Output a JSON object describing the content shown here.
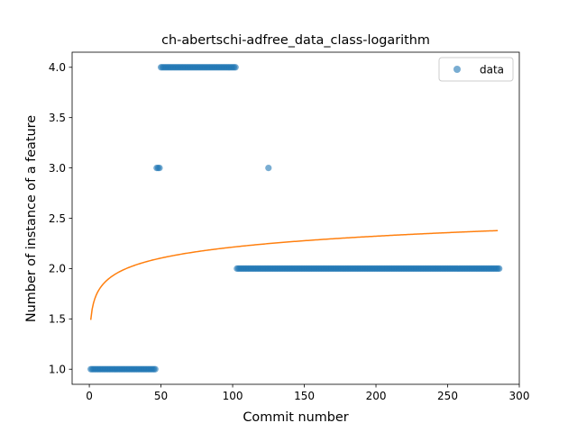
{
  "chart_data": {
    "type": "scatter",
    "title": "ch-abertschi-adfree_data_class-logarithm",
    "xlabel": "Commit number",
    "ylabel": "Number of instance of a feature",
    "xlim": [
      -12,
      300
    ],
    "ylim": [
      0.85,
      4.15
    ],
    "xticks": [
      0,
      50,
      100,
      150,
      200,
      250,
      300
    ],
    "yticks": [
      1.0,
      1.5,
      2.0,
      2.5,
      3.0,
      3.5,
      4.0
    ],
    "xtick_labels": [
      "0",
      "50",
      "100",
      "150",
      "200",
      "250",
      "300"
    ],
    "ytick_labels": [
      "1.0",
      "1.5",
      "2.0",
      "2.5",
      "3.0",
      "3.5",
      "4.0"
    ],
    "grid": false,
    "legend": {
      "position": "top-right",
      "entries": [
        "data"
      ]
    },
    "series": [
      {
        "name": "data",
        "kind": "scatter",
        "color": "#1f77b4",
        "segments": [
          {
            "x_start": 1,
            "x_end": 46,
            "y": 1.0
          },
          {
            "x_start": 47,
            "x_end": 49,
            "y": 3.0
          },
          {
            "x_start": 50,
            "x_end": 102,
            "y": 4.0
          },
          {
            "x_start": 103,
            "x_end": 286,
            "y": 2.0
          }
        ],
        "extra_points": [
          {
            "x": 125,
            "y": 3.0
          }
        ]
      },
      {
        "kind": "line",
        "color": "#ff7f0e",
        "fit": "logarithmic",
        "x_start": 1,
        "x_end": 285,
        "a": 1.49,
        "b": 0.157
      }
    ]
  }
}
